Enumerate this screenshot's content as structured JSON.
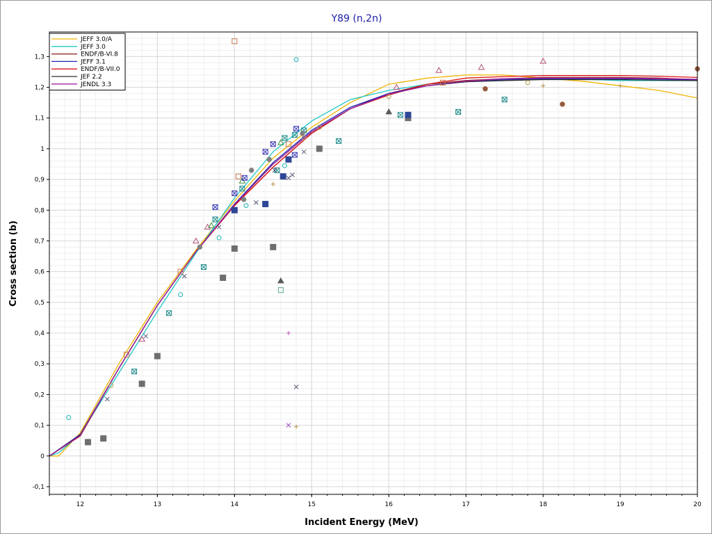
{
  "chart_data": {
    "type": "line",
    "title": "Y89 (n,2n)",
    "xlabel": "Incident Energy (MeV)",
    "ylabel": "Cross section (b)",
    "xlim": [
      11.6,
      20
    ],
    "ylim": [
      -0.125,
      1.38
    ],
    "x_ticks": [
      12,
      13,
      14,
      15,
      16,
      17,
      18,
      19,
      20
    ],
    "x_tick_labels": [
      "12",
      "13",
      "14",
      "15",
      "16",
      "17",
      "18",
      "19",
      "20"
    ],
    "y_ticks": [
      -0.1,
      0,
      0.1,
      0.2,
      0.3,
      0.4,
      0.5,
      0.6,
      0.7,
      0.8,
      0.9,
      1,
      1.1,
      1.2,
      1.3
    ],
    "y_tick_labels": [
      "-0,1",
      "0",
      "0,1",
      "0,2",
      "0,3",
      "0,4",
      "0,5",
      "0,6",
      "0,7",
      "0,8",
      "0,9",
      "1",
      "1,1",
      "1,2",
      "1,3"
    ],
    "grid": true,
    "legend_position": "top-left",
    "series": [
      {
        "name": "JEFF 3.0/A",
        "color": "#f0b400",
        "x": [
          11.6,
          11.72,
          12.0,
          12.5,
          13.0,
          13.5,
          14.0,
          14.5,
          15.0,
          15.5,
          16.0,
          16.5,
          17.0,
          17.5,
          18.0,
          18.5,
          19.0,
          19.5,
          20.0
        ],
        "y": [
          0,
          0,
          0.075,
          0.3,
          0.5,
          0.67,
          0.83,
          0.97,
          1.07,
          1.15,
          1.21,
          1.23,
          1.24,
          1.24,
          1.23,
          1.22,
          1.205,
          1.19,
          1.165
        ]
      },
      {
        "name": "JEFF 3.0",
        "color": "#20c8c8",
        "x": [
          11.6,
          11.72,
          12.0,
          12.5,
          13.0,
          13.5,
          14.0,
          14.5,
          15.0,
          15.5,
          16.0,
          16.5,
          17.0,
          17.5,
          18.0,
          18.5,
          19.0,
          19.5,
          20.0
        ],
        "y": [
          0,
          0.01,
          0.07,
          0.27,
          0.47,
          0.66,
          0.84,
          0.99,
          1.09,
          1.16,
          1.19,
          1.21,
          1.22,
          1.225,
          1.228,
          1.226,
          1.222,
          1.222,
          1.222
        ]
      },
      {
        "name": "ENDF/B-VI.8",
        "color": "#8b1a1a",
        "x": [
          11.6,
          12.0,
          12.5,
          13.0,
          13.5,
          14.0,
          14.5,
          15.0,
          15.5,
          16.0,
          16.5,
          17.0,
          17.5,
          18.0,
          18.5,
          19.0,
          19.5,
          20.0
        ],
        "y": [
          0,
          0.065,
          0.285,
          0.49,
          0.665,
          0.815,
          0.94,
          1.05,
          1.13,
          1.18,
          1.21,
          1.222,
          1.228,
          1.232,
          1.232,
          1.232,
          1.23,
          1.225
        ]
      },
      {
        "name": "JEFF 3.1",
        "color": "#2020b4",
        "x": [
          11.6,
          12.0,
          12.5,
          13.0,
          13.5,
          14.0,
          14.5,
          15.0,
          15.5,
          16.0,
          16.5,
          17.0,
          17.5,
          18.0,
          18.5,
          19.0,
          19.5,
          20.0
        ],
        "y": [
          0,
          0.07,
          0.285,
          0.49,
          0.665,
          0.82,
          0.955,
          1.06,
          1.135,
          1.18,
          1.205,
          1.218,
          1.224,
          1.228,
          1.228,
          1.228,
          1.226,
          1.224
        ]
      },
      {
        "name": "ENDF/B-VII.0",
        "color": "#dc1414",
        "x": [
          11.6,
          12.0,
          12.5,
          13.0,
          13.5,
          14.0,
          14.5,
          15.0,
          15.5,
          16.0,
          16.5,
          17.0,
          17.5,
          18.0,
          18.5,
          19.0,
          19.5,
          20.0
        ],
        "y": [
          0,
          0.065,
          0.285,
          0.49,
          0.665,
          0.815,
          0.94,
          1.05,
          1.13,
          1.175,
          1.21,
          1.23,
          1.235,
          1.238,
          1.238,
          1.238,
          1.236,
          1.232
        ]
      },
      {
        "name": "JEF 2.2",
        "color": "#2e2e2e",
        "x": [
          11.6,
          12.0,
          12.5,
          13.0,
          13.5,
          14.0,
          14.5,
          15.0,
          15.5,
          16.0,
          16.5,
          17.0,
          17.5,
          18.0,
          18.5,
          19.0,
          19.5,
          20.0
        ],
        "y": [
          0,
          0.068,
          0.285,
          0.49,
          0.665,
          0.818,
          0.95,
          1.055,
          1.13,
          1.178,
          1.205,
          1.218,
          1.222,
          1.225,
          1.225,
          1.225,
          1.223,
          1.222
        ]
      },
      {
        "name": "JENDL 3.3",
        "color": "#a020a0",
        "x": [
          11.6,
          12.0,
          12.5,
          13.0,
          13.5,
          14.0,
          14.5,
          15.0,
          15.5,
          16.0,
          16.5,
          17.0,
          17.5,
          18.0,
          18.5,
          19.0,
          19.5,
          20.0
        ],
        "y": [
          0,
          0.066,
          0.285,
          0.49,
          0.665,
          0.818,
          0.95,
          1.055,
          1.13,
          1.178,
          1.205,
          1.22,
          1.228,
          1.23,
          1.23,
          1.23,
          1.228,
          1.226
        ]
      }
    ],
    "experimental_points": [
      {
        "marker": "circle-open",
        "color": "#20b4b4",
        "points": [
          [
            11.85,
            0.125
          ],
          [
            13.3,
            0.525
          ],
          [
            13.8,
            0.71
          ],
          [
            14.15,
            0.815
          ],
          [
            14.65,
            0.945
          ],
          [
            14.8,
            1.29
          ]
        ]
      },
      {
        "marker": "square-open",
        "color": "#c87850",
        "points": [
          [
            12.6,
            0.33
          ],
          [
            13.3,
            0.6
          ],
          [
            14.0,
            1.35
          ],
          [
            14.05,
            0.91
          ],
          [
            14.7,
            1.015
          ],
          [
            16.7,
            1.215
          ]
        ]
      },
      {
        "marker": "triangle-open",
        "color": "#b45078",
        "points": [
          [
            12.8,
            0.38
          ],
          [
            13.5,
            0.7
          ],
          [
            13.65,
            0.745
          ],
          [
            16.1,
            1.2
          ],
          [
            16.65,
            1.255
          ],
          [
            17.2,
            1.265
          ],
          [
            18.0,
            1.285
          ]
        ]
      },
      {
        "marker": "triangle-open",
        "color": "#3c8c3c",
        "points": [
          [
            13.7,
            0.75
          ],
          [
            14.1,
            0.895
          ],
          [
            14.6,
            1.02
          ]
        ]
      },
      {
        "marker": "circle-open",
        "color": "#b4a050",
        "points": [
          [
            12.4,
            0.23
          ],
          [
            14.9,
            1.035
          ],
          [
            15.1,
            1.07
          ],
          [
            16.0,
            1.17
          ],
          [
            17.8,
            1.215
          ]
        ]
      },
      {
        "marker": "square-cross",
        "color": "#208c8c",
        "points": [
          [
            12.7,
            0.275
          ],
          [
            13.15,
            0.465
          ],
          [
            13.6,
            0.615
          ],
          [
            13.75,
            0.77
          ],
          [
            14.1,
            0.87
          ],
          [
            14.55,
            0.93
          ],
          [
            14.65,
            1.035
          ],
          [
            14.78,
            1.045
          ],
          [
            14.9,
            1.06
          ],
          [
            15.35,
            1.025
          ],
          [
            16.15,
            1.11
          ],
          [
            16.9,
            1.12
          ],
          [
            17.5,
            1.16
          ]
        ]
      },
      {
        "marker": "square-cross",
        "color": "#3c3cb4",
        "points": [
          [
            13.75,
            0.81
          ],
          [
            14.0,
            0.855
          ],
          [
            14.13,
            0.905
          ],
          [
            14.4,
            0.99
          ],
          [
            14.5,
            1.015
          ],
          [
            14.78,
            0.98
          ],
          [
            14.8,
            1.065
          ]
        ]
      },
      {
        "marker": "square-filled",
        "color": "#6e6e6e",
        "points": [
          [
            12.1,
            0.045
          ],
          [
            12.3,
            0.057
          ],
          [
            12.8,
            0.235
          ],
          [
            13.0,
            0.325
          ],
          [
            13.85,
            0.58
          ],
          [
            14.0,
            0.675
          ],
          [
            14.5,
            0.68
          ],
          [
            15.1,
            1.0
          ],
          [
            16.25,
            1.1
          ]
        ]
      },
      {
        "marker": "square-filled",
        "color": "#2e4696",
        "points": [
          [
            14.0,
            0.8
          ],
          [
            14.4,
            0.82
          ],
          [
            14.63,
            0.91
          ],
          [
            14.7,
            0.965
          ],
          [
            16.25,
            1.11
          ]
        ]
      },
      {
        "marker": "circle-filled",
        "color": "#808080",
        "points": [
          [
            13.55,
            0.68
          ],
          [
            14.12,
            0.835
          ],
          [
            14.22,
            0.93
          ],
          [
            14.45,
            0.965
          ],
          [
            14.88,
            1.05
          ]
        ]
      },
      {
        "marker": "circle-filled",
        "color": "#965a3c",
        "points": [
          [
            17.25,
            1.195
          ],
          [
            18.25,
            1.145
          ],
          [
            20.0,
            1.26
          ]
        ]
      },
      {
        "marker": "triangle-filled",
        "color": "#5a5a5a",
        "points": [
          [
            14.6,
            0.57
          ],
          [
            16.0,
            1.12
          ]
        ]
      },
      {
        "marker": "x",
        "color": "#5a5a78",
        "points": [
          [
            12.35,
            0.185
          ],
          [
            12.85,
            0.39
          ],
          [
            13.35,
            0.585
          ],
          [
            13.8,
            0.745
          ],
          [
            14.28,
            0.825
          ],
          [
            14.52,
            0.93
          ],
          [
            14.7,
            0.905
          ],
          [
            14.75,
            0.915
          ],
          [
            14.9,
            0.99
          ],
          [
            14.8,
            0.225
          ]
        ]
      },
      {
        "marker": "x",
        "color": "#a040c0",
        "points": [
          [
            14.7,
            0.1
          ]
        ]
      },
      {
        "marker": "plus",
        "color": "#c050c0",
        "points": [
          [
            14.7,
            0.4
          ]
        ]
      },
      {
        "marker": "plus",
        "color": "#b48c3c",
        "points": [
          [
            14.5,
            0.885
          ],
          [
            14.8,
            0.095
          ],
          [
            18.0,
            1.205
          ],
          [
            19.0,
            1.205
          ]
        ]
      },
      {
        "marker": "square-open",
        "color": "#5aaa8c",
        "points": [
          [
            14.6,
            0.54
          ]
        ]
      }
    ]
  }
}
